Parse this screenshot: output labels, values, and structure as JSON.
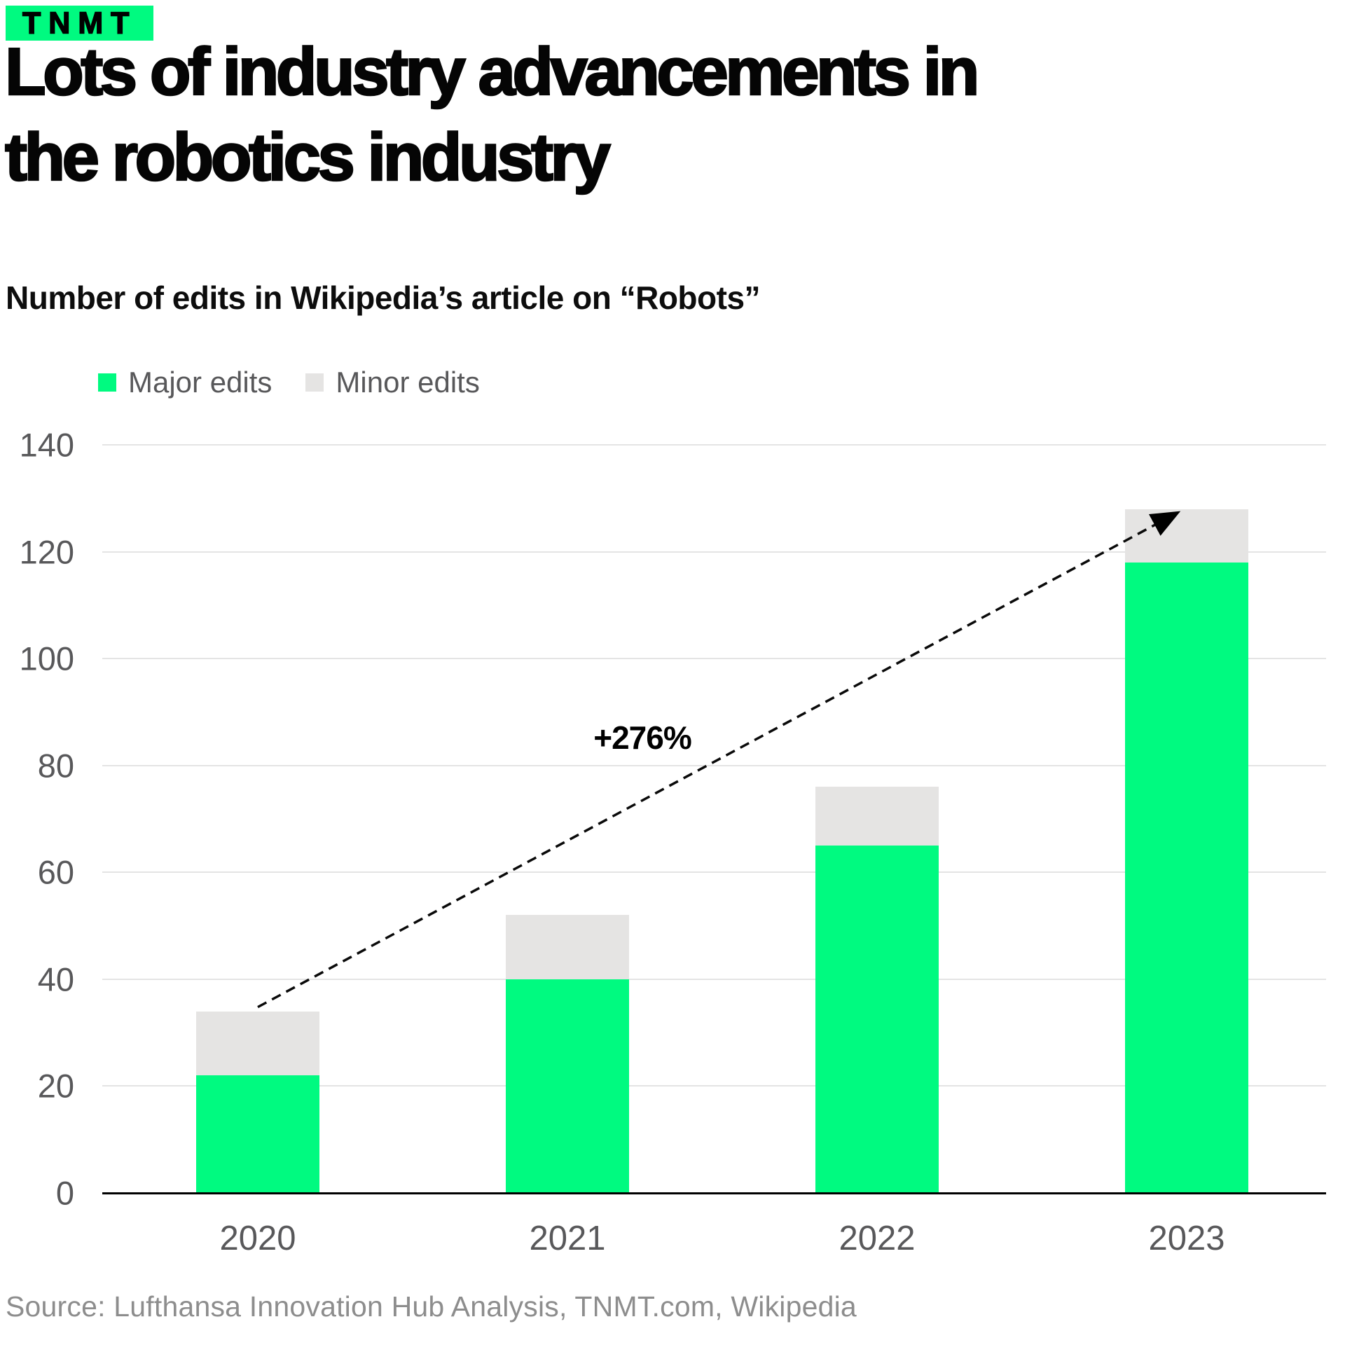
{
  "logo": {
    "text": "TNMT",
    "bg": "#00FA80"
  },
  "title": {
    "line1": "Lots of industry advancements in",
    "line2": "the robotics industry"
  },
  "subtitle": "Number of edits in Wikipedia’s article on “Robots”",
  "legend": [
    {
      "label": "Major edits",
      "color": "#00FA80"
    },
    {
      "label": "Minor edits",
      "color": "#E5E4E3"
    }
  ],
  "source": "Source: Lufthansa Innovation Hub Analysis, TNMT.com, Wikipedia",
  "colors": {
    "major": "#00FA80",
    "minor": "#E5E4E3",
    "gridline": "#E4E4E4",
    "axis": "#000000",
    "tick_text": "#58585A",
    "source_text": "#8D8D8D"
  },
  "chart_data": {
    "type": "bar",
    "stacked": true,
    "title": "Lots of industry advancements in the robotics industry",
    "subtitle": "Number of edits in Wikipedia’s article on “Robots”",
    "categories": [
      "2020",
      "2021",
      "2022",
      "2023"
    ],
    "series": [
      {
        "name": "Major edits",
        "color": "#00FA80",
        "values": [
          22,
          40,
          65,
          118
        ]
      },
      {
        "name": "Minor edits",
        "color": "#E5E4E3",
        "values": [
          12,
          12,
          11,
          10
        ]
      }
    ],
    "totals": [
      34,
      52,
      76,
      128
    ],
    "xlabel": "",
    "ylabel": "",
    "ylim": [
      0,
      140
    ],
    "yticks": [
      0,
      20,
      40,
      60,
      80,
      100,
      120,
      140
    ],
    "grid": true,
    "legend_position": "top-left",
    "annotation": {
      "text": "+276%",
      "from_category": "2020",
      "to_category": "2023",
      "from_value": 34,
      "to_value": 128
    }
  }
}
